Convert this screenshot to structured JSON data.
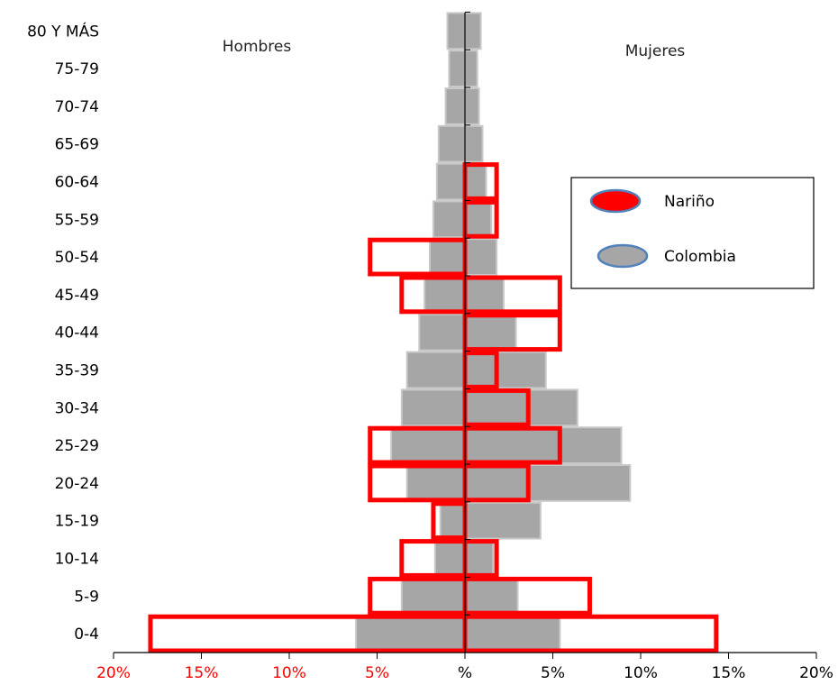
{
  "chart_data": {
    "type": "bar",
    "orientation": "horizontal",
    "subtype": "population-pyramid",
    "categories": [
      "0-4",
      "5-9",
      "10-14",
      "15-19",
      "20-24",
      "25-29",
      "30-34",
      "35-39",
      "40-44",
      "45-49",
      "50-54",
      "55-59",
      "60-64",
      "65-69",
      "70-74",
      "75-79",
      "80 Y MÁS"
    ],
    "side_labels": {
      "left": "Hombres",
      "right": "Mujeres"
    },
    "xlim": [
      -20,
      20
    ],
    "x_ticks": [
      -20,
      -15,
      -10,
      -5,
      0,
      5,
      10,
      15,
      20
    ],
    "x_tick_labels": [
      "20%",
      "15%",
      "10%",
      "5%",
      "%",
      "5%",
      "10%",
      "15%",
      "20%"
    ],
    "x_tick_colors": {
      "negative": "#ff0000",
      "zero": "#000000",
      "positive": "#000000"
    },
    "series": [
      {
        "name": "Colombia",
        "style": "filled",
        "color": "#a6a6a6",
        "hombres": [
          6.2,
          3.6,
          1.7,
          1.4,
          3.3,
          4.2,
          3.6,
          3.3,
          2.6,
          2.3,
          2.0,
          1.8,
          1.6,
          1.5,
          1.1,
          0.9,
          1.0
        ],
        "mujeres": [
          5.4,
          3.0,
          1.6,
          4.3,
          9.4,
          8.9,
          6.4,
          4.6,
          2.9,
          2.2,
          1.8,
          1.5,
          1.2,
          1.0,
          0.8,
          0.7,
          0.9
        ]
      },
      {
        "name": "Nariño",
        "style": "outline",
        "color": "#ff0000",
        "hombres": [
          17.9,
          5.4,
          3.6,
          1.8,
          5.4,
          5.4,
          0,
          0,
          0,
          3.6,
          5.4,
          0,
          0,
          0,
          0,
          0,
          0
        ],
        "mujeres": [
          14.3,
          7.1,
          1.8,
          0,
          3.6,
          5.4,
          3.6,
          1.8,
          5.4,
          5.4,
          0,
          1.8,
          1.8,
          0,
          0,
          0,
          0
        ]
      }
    ],
    "legend": {
      "position": "right",
      "entries": [
        {
          "label": "Nariño",
          "fill": "#ff0000",
          "stroke": "#4f81bd"
        },
        {
          "label": "Colombia",
          "fill": "#a6a6a6",
          "stroke": "#4f81bd"
        }
      ]
    }
  }
}
